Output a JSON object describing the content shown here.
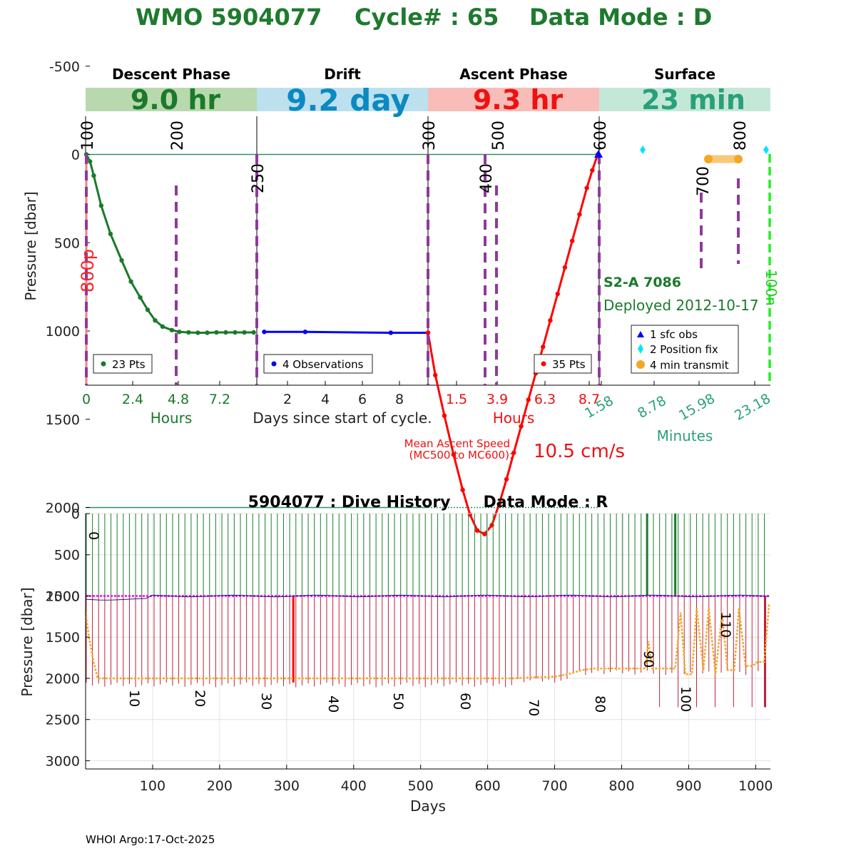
{
  "title": {
    "wmo": "WMO 5904077",
    "cycle": "Cycle# : 65",
    "mode": "Data Mode : D"
  },
  "colors": {
    "title_green": "#1e7a2e",
    "descent_green": "#1a7a2a",
    "drift_blue": "#0000ff",
    "ascent_red": "#ff0000",
    "surface_teal": "#2aa07a",
    "mc_purple": "#8e3a9a",
    "orange": "#f5a623",
    "cyan": "#00e5ff",
    "magenta": "#ff00ff"
  },
  "panels": {
    "descent": {
      "header": "Descent Phase",
      "duration": "9.0 hr",
      "band_color": "#b8d9ad",
      "text_color": "#1a7a2a"
    },
    "drift": {
      "header": "Drift",
      "duration": "9.2 day",
      "band_color": "#bde0ee",
      "text_color": "#0a8ac0"
    },
    "ascent": {
      "header": "Ascent Phase",
      "duration": "9.3 hr",
      "band_color": "#f8bdb8",
      "text_color": "#ee1111"
    },
    "surface": {
      "header": "Surface",
      "duration": "23 min",
      "band_color": "#c4e8d8",
      "text_color": "#2aa07a"
    }
  },
  "top_chart": {
    "ylabel": "Pressure [dbar]",
    "yticks": [
      "-500",
      "0",
      "500",
      "1000",
      "1500",
      "2000",
      "2500"
    ],
    "descent_xticks": [
      "0",
      "2.4",
      "4.8",
      "7.2"
    ],
    "descent_xlabel": "Hours",
    "drift_xticks": [
      "2",
      "4",
      "6",
      "8"
    ],
    "drift_xlabel": "Days since start of cycle.",
    "ascent_xticks": [
      "1.5",
      "3.9",
      "6.3",
      "8.7"
    ],
    "ascent_xlabel": "Hours",
    "surface_xticks": [
      "1.58",
      "8.78",
      "15.98",
      "23.18"
    ],
    "surface_xlabel": "Minutes",
    "mc_labels": [
      "100",
      "200",
      "250",
      "300",
      "400",
      "500",
      "600",
      "700",
      "800"
    ],
    "park_label": "800p",
    "surface_end_label": "100n",
    "legend_descent": "23 Pts",
    "legend_drift": "4 Observations",
    "legend_ascent": "35 Pts",
    "surface_legend": [
      "1 sfc obs",
      "2 Position fix",
      "4 min transmit"
    ],
    "float_id": "S2-A 7086",
    "deployed": "Deployed 2012-10-17",
    "speed_label_1": "Mean Ascent Speed",
    "speed_label_2": "(MC500 to MC600):",
    "speed_value": "10.5 cm/s"
  },
  "chart_data": [
    {
      "type": "line",
      "name": "descent",
      "xlabel": "Hours",
      "ylabel": "Pressure [dbar]",
      "ylim": [
        2600,
        -700
      ],
      "x": [
        0,
        0.2,
        0.4,
        0.8,
        1.3,
        1.9,
        2.4,
        2.9,
        3.3,
        3.7,
        4.1,
        4.6,
        5.0,
        5.5,
        6.0,
        6.5,
        7.0,
        7.5,
        8.0,
        8.5,
        9.0
      ],
      "y": [
        0,
        40,
        120,
        290,
        450,
        600,
        720,
        810,
        880,
        940,
        975,
        995,
        1005,
        1008,
        1010,
        1010,
        1008,
        1008,
        1008,
        1008,
        1008
      ],
      "points": 23
    },
    {
      "type": "line",
      "name": "drift",
      "xlabel": "Days since start of cycle.",
      "x": [
        0.4,
        2.6,
        7.2,
        9.2
      ],
      "y": [
        1005,
        1005,
        1010,
        1010
      ],
      "points": 4
    },
    {
      "type": "line",
      "name": "ascent",
      "xlabel": "Hours",
      "x": [
        0,
        0.4,
        0.9,
        1.4,
        1.9,
        2.3,
        2.7,
        3.1,
        3.5,
        3.9,
        4.3,
        4.7,
        5.1,
        5.5,
        5.9,
        6.3,
        6.7,
        7.1,
        7.5,
        7.9,
        8.3,
        8.7,
        9.0,
        9.3
      ],
      "y": [
        1010,
        1250,
        1480,
        1700,
        1900,
        2040,
        2130,
        2150,
        2100,
        1980,
        1840,
        1690,
        1540,
        1390,
        1240,
        1090,
        940,
        790,
        640,
        490,
        340,
        190,
        90,
        0
      ],
      "points": 35
    },
    {
      "type": "scatter",
      "name": "dive_history",
      "title": "5904077 : Dive History      Data Mode : R",
      "xlabel": "Days",
      "ylabel": "Pressure [dbar]",
      "xlim": [
        0,
        1022
      ],
      "ylim": [
        3100,
        0
      ],
      "xticks": [
        100,
        200,
        300,
        400,
        500,
        600,
        700,
        800,
        900,
        1000
      ],
      "yticks": [
        0,
        500,
        1000,
        1500,
        2000,
        2500,
        3000
      ],
      "drift_pressure": 1000,
      "profile_pressure_early": 2000,
      "profile_pressure_late": 1870,
      "cycle_labels": [
        "0",
        "10",
        "20",
        "30",
        "40",
        "50",
        "60",
        "70",
        "80",
        "90",
        "100",
        "110"
      ]
    }
  ],
  "bottom_chart": {
    "title": "5904077 : Dive History      Data Mode : R",
    "ylabel": "Pressure [dbar]",
    "xlabel": "Days",
    "xticks": [
      "100",
      "200",
      "300",
      "400",
      "500",
      "600",
      "700",
      "800",
      "900",
      "1000"
    ],
    "yticks": [
      "0",
      "500",
      "1000",
      "1500",
      "2000",
      "2500",
      "3000"
    ],
    "cycle_labels": [
      "0",
      "10",
      "20",
      "30",
      "40",
      "50",
      "60",
      "70",
      "80",
      "90",
      "100",
      "110"
    ]
  },
  "footer": "WHOI Argo:17-Oct-2025"
}
